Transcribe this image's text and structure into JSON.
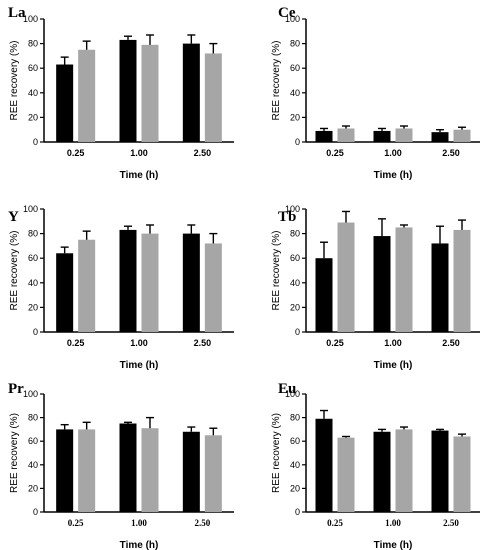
{
  "colors": {
    "series_1": "#000000",
    "series_2": "#a6a6a6",
    "axis": "#000000"
  },
  "chart_data": [
    {
      "type": "bar",
      "title": "La",
      "xlabel": "Time (h)",
      "ylabel": "REE recovery (%)",
      "categories": [
        "0.25",
        "1.00",
        "2.50"
      ],
      "ylim": [
        0,
        100
      ],
      "yticks": [
        0,
        20,
        40,
        60,
        80,
        100
      ],
      "series": [
        {
          "values": [
            63,
            83,
            80
          ],
          "errors": [
            6,
            3,
            7
          ]
        },
        {
          "values": [
            75,
            79,
            72
          ],
          "errors": [
            7,
            8,
            8
          ]
        }
      ]
    },
    {
      "type": "bar",
      "title": "Ce",
      "xlabel": "Time (h)",
      "ylabel": "REE recovery (%)",
      "categories": [
        "0.25",
        "1.00",
        "2.50"
      ],
      "ylim": [
        0,
        100
      ],
      "yticks": [
        0,
        20,
        40,
        60,
        80,
        100
      ],
      "series": [
        {
          "values": [
            9,
            9,
            8
          ],
          "errors": [
            2,
            2,
            2
          ]
        },
        {
          "values": [
            11,
            11,
            10
          ],
          "errors": [
            2,
            2,
            2
          ]
        }
      ]
    },
    {
      "type": "bar",
      "title": "Y",
      "xlabel": "Time (h)",
      "ylabel": "REE recovery (%)",
      "categories": [
        "0.25",
        "1.00",
        "2.50"
      ],
      "ylim": [
        0,
        100
      ],
      "yticks": [
        0,
        20,
        40,
        60,
        80,
        100
      ],
      "series": [
        {
          "values": [
            64,
            83,
            80
          ],
          "errors": [
            5,
            3,
            7
          ]
        },
        {
          "values": [
            75,
            80,
            72
          ],
          "errors": [
            7,
            7,
            8
          ]
        }
      ]
    },
    {
      "type": "bar",
      "title": "Tb",
      "xlabel": "Time (h)",
      "ylabel": "REE recovery (%)",
      "categories": [
        "0.25",
        "1.00",
        "2.50"
      ],
      "ylim": [
        0,
        100
      ],
      "yticks": [
        0,
        20,
        40,
        60,
        80,
        100
      ],
      "series": [
        {
          "values": [
            60,
            78,
            72
          ],
          "errors": [
            13,
            14,
            14
          ]
        },
        {
          "values": [
            89,
            85,
            83
          ],
          "errors": [
            9,
            2,
            8
          ]
        }
      ]
    },
    {
      "type": "bar",
      "title": "Pr",
      "xlabel": "Time (h)",
      "ylabel": "REE recovery (%)",
      "categories": [
        "0.25",
        "1.00",
        "2.50"
      ],
      "ylim": [
        0,
        100
      ],
      "yticks": [
        0,
        20,
        40,
        60,
        80,
        100
      ],
      "series": [
        {
          "values": [
            70,
            75,
            68
          ],
          "errors": [
            4,
            1,
            4
          ]
        },
        {
          "values": [
            70,
            71,
            65
          ],
          "errors": [
            6,
            9,
            6
          ]
        }
      ]
    },
    {
      "type": "bar",
      "title": "Eu",
      "xlabel": "Time (h)",
      "ylabel": "REE recovery (%)",
      "categories": [
        "0.25",
        "1.00",
        "2.50"
      ],
      "ylim": [
        0,
        100
      ],
      "yticks": [
        0,
        20,
        40,
        60,
        80,
        100
      ],
      "series": [
        {
          "values": [
            79,
            68,
            69
          ],
          "errors": [
            7,
            2,
            1
          ]
        },
        {
          "values": [
            63,
            70,
            64
          ],
          "errors": [
            1,
            2,
            2
          ]
        }
      ]
    }
  ]
}
